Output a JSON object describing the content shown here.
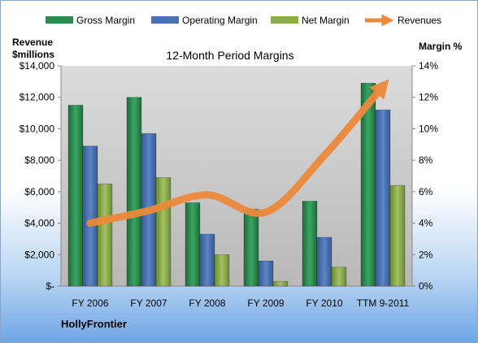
{
  "chart_data": {
    "type": "bar",
    "title": "12-Month Period Margins",
    "company": "HollyFrontier",
    "y_left_label_line1": "Revenue",
    "y_left_label_line2": "$millions",
    "y_right_label": "Margin %",
    "categories": [
      "FY 2006",
      "FY 2007",
      "FY 2008",
      "FY 2009",
      "FY 2010",
      "TTM 9-2011"
    ],
    "left_axis": {
      "ylim": [
        0,
        14000
      ],
      "ticks": [
        0,
        2000,
        4000,
        6000,
        8000,
        10000,
        12000,
        14000
      ],
      "tick_labels": [
        "$-",
        "$2,000",
        "$4,000",
        "$6,000",
        "$8,000",
        "$10,000",
        "$12,000",
        "$14,000"
      ]
    },
    "right_axis": {
      "ylim": [
        0,
        14
      ],
      "ticks": [
        0,
        2,
        4,
        6,
        8,
        10,
        12,
        14
      ],
      "tick_labels": [
        "0%",
        "2%",
        "4%",
        "6%",
        "8%",
        "10%",
        "12%",
        "14%"
      ]
    },
    "series": [
      {
        "name": "Gross Margin",
        "kind": "bar",
        "axis": "right",
        "color": "#2e8a52",
        "values": [
          11.5,
          12.0,
          5.3,
          4.9,
          5.4,
          12.9
        ]
      },
      {
        "name": "Operating Margin",
        "kind": "bar",
        "axis": "right",
        "color": "#4a72b0",
        "values": [
          8.9,
          9.7,
          3.3,
          1.6,
          3.1,
          11.2
        ]
      },
      {
        "name": "Net Margin",
        "kind": "bar",
        "axis": "right",
        "color": "#8aab4e",
        "values": [
          6.5,
          6.9,
          2.0,
          0.3,
          1.2,
          6.4
        ]
      },
      {
        "name": "Revenues",
        "kind": "line",
        "axis": "left",
        "color": "#ec8a3c",
        "values": [
          4000,
          4800,
          5800,
          4700,
          8300,
          12700
        ]
      }
    ],
    "grid": false,
    "legend_position": "top"
  }
}
